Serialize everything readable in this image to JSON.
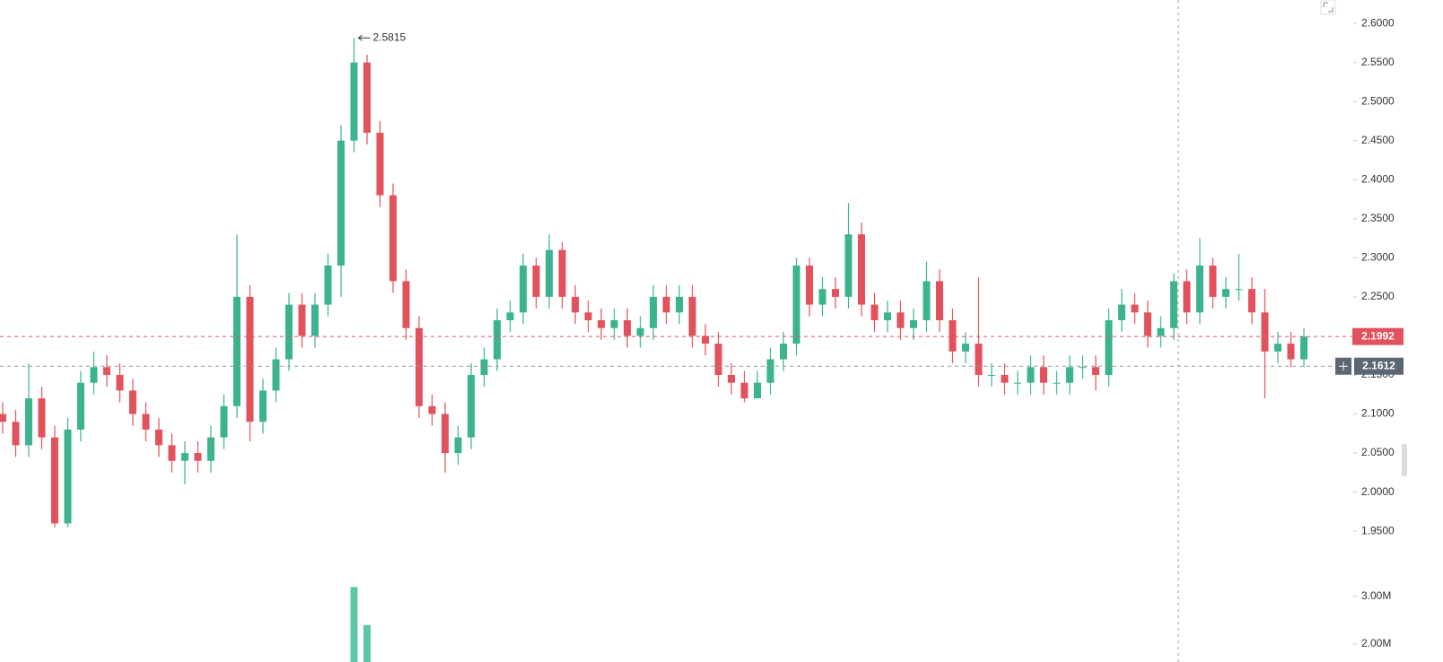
{
  "chart_data": {
    "type": "candlestick",
    "up_color": "#3bb38f",
    "down_color": "#e2525c",
    "volume_color": "#5cc7a8",
    "open": [
      2.1,
      2.09,
      2.06,
      2.12,
      2.07,
      1.96,
      2.08,
      2.14,
      2.16,
      2.15,
      2.13,
      2.1,
      2.08,
      2.06,
      2.04,
      2.05,
      2.04,
      2.07,
      2.11,
      2.25,
      2.09,
      2.13,
      2.17,
      2.24,
      2.2,
      2.24,
      2.29,
      2.45,
      2.55,
      2.46,
      2.38,
      2.27,
      2.21,
      2.11,
      2.1,
      2.05,
      2.07,
      2.15,
      2.17,
      2.22,
      2.23,
      2.29,
      2.25,
      2.31,
      2.25,
      2.23,
      2.22,
      2.21,
      2.22,
      2.2,
      2.21,
      2.25,
      2.23,
      2.25,
      2.2,
      2.19,
      2.15,
      2.14,
      2.12,
      2.14,
      2.17,
      2.19,
      2.29,
      2.24,
      2.26,
      2.25,
      2.33,
      2.24,
      2.22,
      2.23,
      2.21,
      2.22,
      2.27,
      2.22,
      2.18,
      2.19,
      2.15,
      2.15,
      2.14,
      2.14,
      2.16,
      2.14,
      2.14,
      2.16,
      2.16,
      2.15,
      2.22,
      2.24,
      2.23,
      2.2,
      2.21,
      2.27,
      2.23,
      2.29,
      2.25,
      2.26,
      2.26,
      2.23,
      2.18,
      2.19,
      2.17
    ],
    "high": [
      2.115,
      2.105,
      2.165,
      2.135,
      2.085,
      2.095,
      2.155,
      2.18,
      2.175,
      2.165,
      2.145,
      2.115,
      2.095,
      2.075,
      2.065,
      2.065,
      2.085,
      2.125,
      2.33,
      2.265,
      2.145,
      2.185,
      2.255,
      2.255,
      2.255,
      2.305,
      2.47,
      2.5815,
      2.56,
      2.475,
      2.395,
      2.285,
      2.225,
      2.125,
      2.115,
      2.085,
      2.165,
      2.185,
      2.235,
      2.245,
      2.305,
      2.3,
      2.33,
      2.32,
      2.265,
      2.245,
      2.235,
      2.235,
      2.235,
      2.225,
      2.265,
      2.265,
      2.265,
      2.265,
      2.215,
      2.205,
      2.165,
      2.155,
      2.155,
      2.185,
      2.205,
      2.3,
      2.3,
      2.275,
      2.275,
      2.37,
      2.345,
      2.255,
      2.245,
      2.245,
      2.235,
      2.295,
      2.285,
      2.235,
      2.205,
      2.275,
      2.165,
      2.165,
      2.155,
      2.175,
      2.175,
      2.155,
      2.175,
      2.175,
      2.175,
      2.235,
      2.26,
      2.255,
      2.245,
      2.225,
      2.28,
      2.285,
      2.325,
      2.3,
      2.275,
      2.305,
      2.275,
      2.26,
      2.205,
      2.205,
      2.21
    ],
    "low": [
      2.075,
      2.045,
      2.045,
      2.055,
      1.955,
      1.955,
      2.065,
      2.125,
      2.135,
      2.115,
      2.085,
      2.065,
      2.045,
      2.025,
      2.01,
      2.025,
      2.025,
      2.055,
      2.095,
      2.065,
      2.075,
      2.115,
      2.155,
      2.185,
      2.185,
      2.225,
      2.25,
      2.435,
      2.445,
      2.365,
      2.255,
      2.195,
      2.095,
      2.085,
      2.025,
      2.035,
      2.055,
      2.135,
      2.155,
      2.205,
      2.215,
      2.235,
      2.235,
      2.235,
      2.215,
      2.205,
      2.195,
      2.195,
      2.185,
      2.185,
      2.195,
      2.215,
      2.215,
      2.185,
      2.175,
      2.135,
      2.125,
      2.115,
      2.12,
      2.125,
      2.155,
      2.175,
      2.225,
      2.225,
      2.235,
      2.235,
      2.225,
      2.205,
      2.205,
      2.195,
      2.195,
      2.205,
      2.205,
      2.165,
      2.165,
      2.135,
      2.135,
      2.125,
      2.125,
      2.125,
      2.125,
      2.125,
      2.125,
      2.145,
      2.13,
      2.135,
      2.205,
      2.215,
      2.185,
      2.185,
      2.195,
      2.215,
      2.215,
      2.235,
      2.235,
      2.245,
      2.215,
      2.12,
      2.165,
      2.16,
      2.16
    ],
    "close": [
      2.09,
      2.06,
      2.12,
      2.07,
      1.96,
      2.08,
      2.14,
      2.16,
      2.15,
      2.13,
      2.1,
      2.08,
      2.06,
      2.04,
      2.05,
      2.04,
      2.07,
      2.11,
      2.25,
      2.09,
      2.13,
      2.17,
      2.24,
      2.2,
      2.24,
      2.29,
      2.45,
      2.55,
      2.46,
      2.38,
      2.27,
      2.21,
      2.11,
      2.1,
      2.05,
      2.07,
      2.15,
      2.17,
      2.22,
      2.23,
      2.29,
      2.25,
      2.31,
      2.25,
      2.23,
      2.22,
      2.21,
      2.22,
      2.2,
      2.21,
      2.25,
      2.23,
      2.25,
      2.2,
      2.19,
      2.15,
      2.14,
      2.12,
      2.14,
      2.17,
      2.19,
      2.29,
      2.24,
      2.26,
      2.25,
      2.33,
      2.24,
      2.22,
      2.23,
      2.21,
      2.22,
      2.27,
      2.22,
      2.18,
      2.19,
      2.15,
      2.15,
      2.14,
      2.14,
      2.16,
      2.14,
      2.14,
      2.16,
      2.16,
      2.15,
      2.22,
      2.24,
      2.23,
      2.2,
      2.21,
      2.27,
      2.23,
      2.29,
      2.25,
      2.26,
      2.26,
      2.23,
      2.18,
      2.19,
      2.17,
      2.1992
    ],
    "volume": [
      null,
      null,
      null,
      null,
      null,
      null,
      null,
      null,
      null,
      null,
      null,
      null,
      null,
      null,
      null,
      null,
      null,
      null,
      null,
      null,
      null,
      null,
      null,
      null,
      null,
      null,
      null,
      3200000,
      2400000,
      null,
      null,
      null,
      null,
      null,
      null,
      null,
      null,
      null,
      null,
      null,
      null,
      null,
      null,
      null,
      null,
      null,
      null,
      null,
      null,
      null,
      null,
      null,
      null,
      null,
      null,
      null,
      null,
      null,
      null,
      null,
      null,
      null,
      null,
      null,
      null,
      null,
      null,
      null,
      null,
      null,
      null,
      null,
      null,
      null,
      null,
      null,
      null,
      null,
      null,
      null,
      null,
      null,
      null,
      null,
      null,
      null,
      null,
      null,
      null,
      null,
      null,
      null,
      null,
      null,
      null,
      null,
      null,
      null,
      null,
      null,
      null
    ],
    "ylim": [
      1.918,
      2.63
    ],
    "yticks": [
      {
        "value": 2.6,
        "label": "2.6000"
      },
      {
        "value": 2.55,
        "label": "2.5500"
      },
      {
        "value": 2.5,
        "label": "2.5000"
      },
      {
        "value": 2.45,
        "label": "2.4500"
      },
      {
        "value": 2.4,
        "label": "2.4000"
      },
      {
        "value": 2.35,
        "label": "2.3500"
      },
      {
        "value": 2.3,
        "label": "2.3000"
      },
      {
        "value": 2.25,
        "label": "2.2500"
      },
      {
        "value": 2.2,
        "label": "2.2000"
      },
      {
        "value": 2.15,
        "label": "2.1500"
      },
      {
        "value": 2.1,
        "label": "2.1000"
      },
      {
        "value": 2.05,
        "label": "2.0500"
      },
      {
        "value": 2.0,
        "label": "2.0000"
      },
      {
        "value": 1.95,
        "label": "1.9500"
      }
    ],
    "y2lim": [
      1620000,
      3850000
    ],
    "y2ticks": [
      {
        "value": 3000000,
        "label": "3.00M"
      },
      {
        "value": 2000000,
        "label": "2.00M"
      }
    ],
    "last_price": 2.1992,
    "crosshair_price": 2.1612
  }
}
